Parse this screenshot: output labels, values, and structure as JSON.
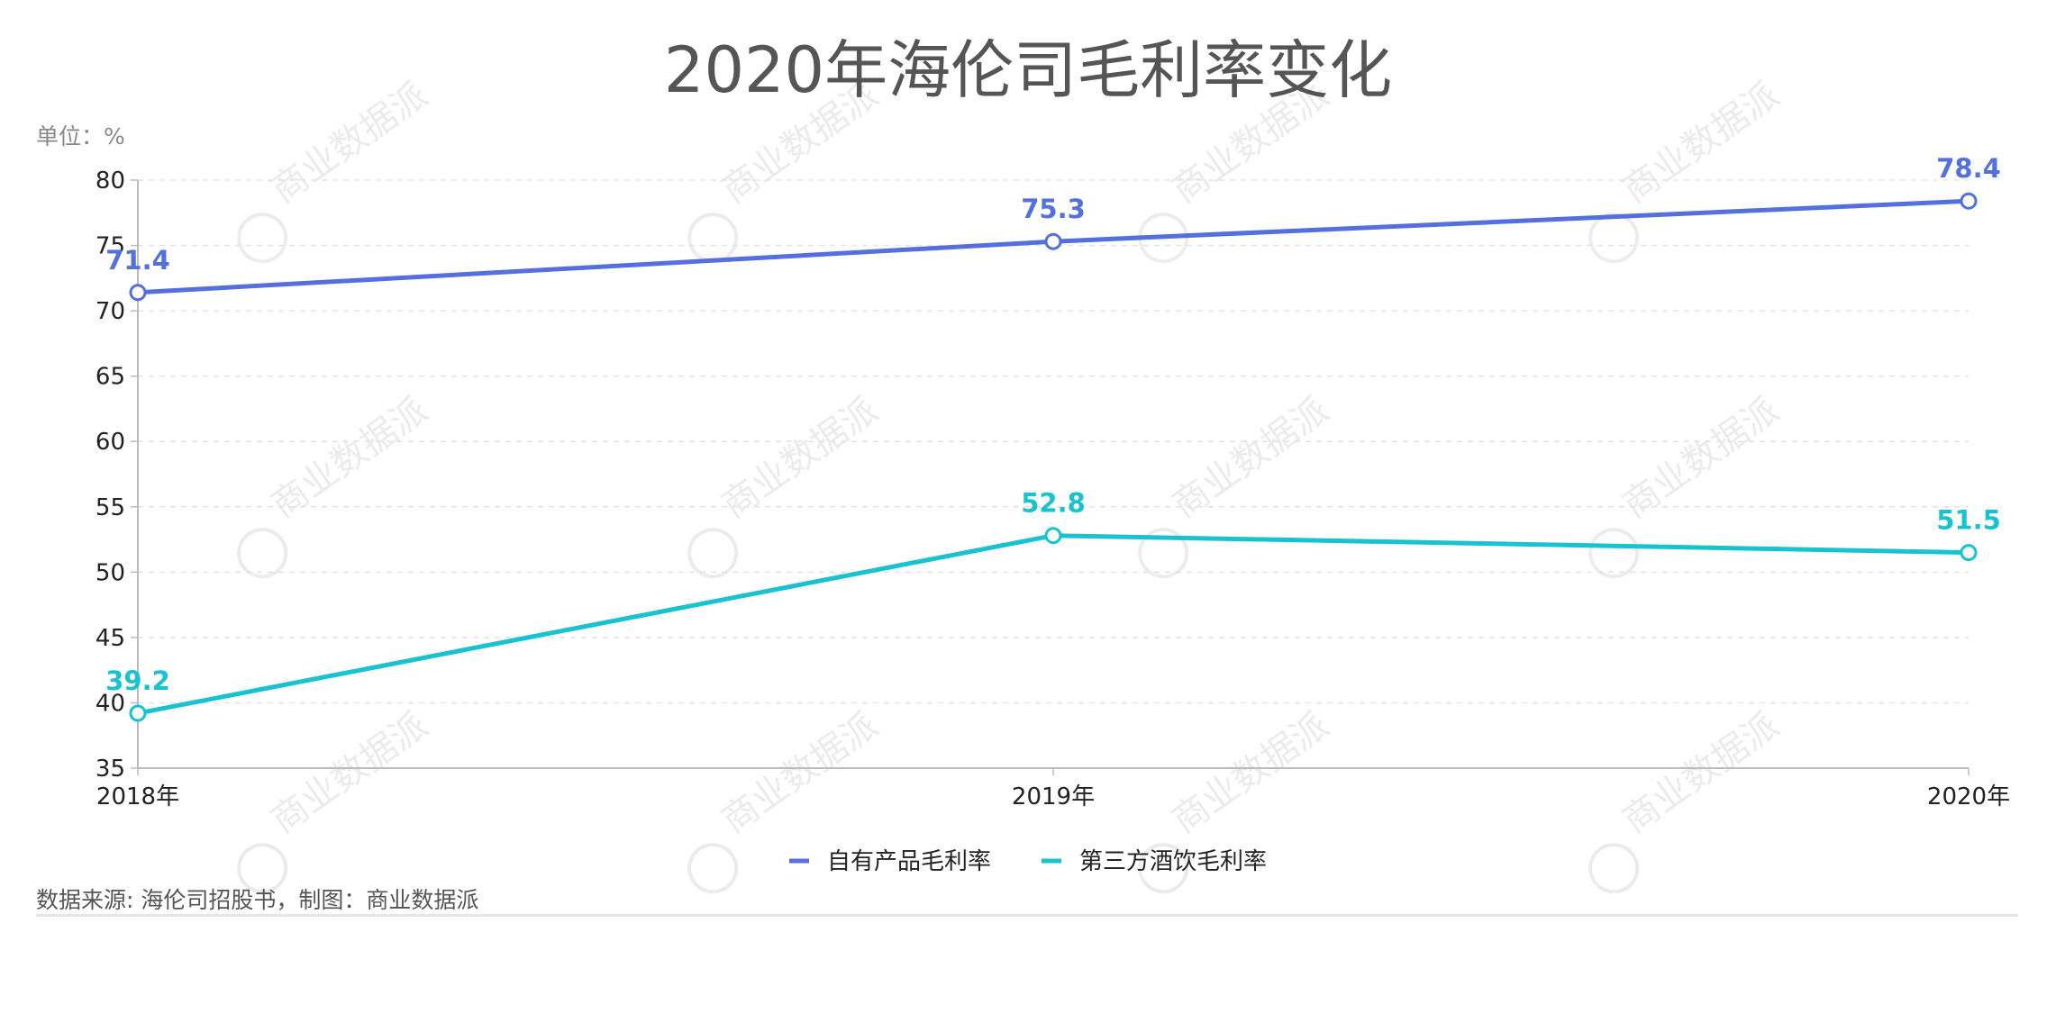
{
  "chart_data": {
    "type": "line",
    "title": "2020年海伦司毛利率变化",
    "unit": "单位：%",
    "categories": [
      "2018年",
      "2019年",
      "2020年"
    ],
    "ylim": [
      35,
      80
    ],
    "yticks": [
      35,
      40,
      45,
      50,
      55,
      60,
      65,
      70,
      75,
      80
    ],
    "grid": true,
    "legend_position": "bottom-center",
    "series": [
      {
        "name": "自有产品毛利率",
        "values": [
          71.4,
          75.3,
          78.4
        ],
        "color": "#5470de"
      },
      {
        "name": "第三方酒饮毛利率",
        "values": [
          39.2,
          52.8,
          51.5
        ],
        "color": "#19c2cf"
      }
    ],
    "source": "数据来源: 海伦司招股书，制图：商业数据派",
    "watermark": "商业数据派"
  }
}
